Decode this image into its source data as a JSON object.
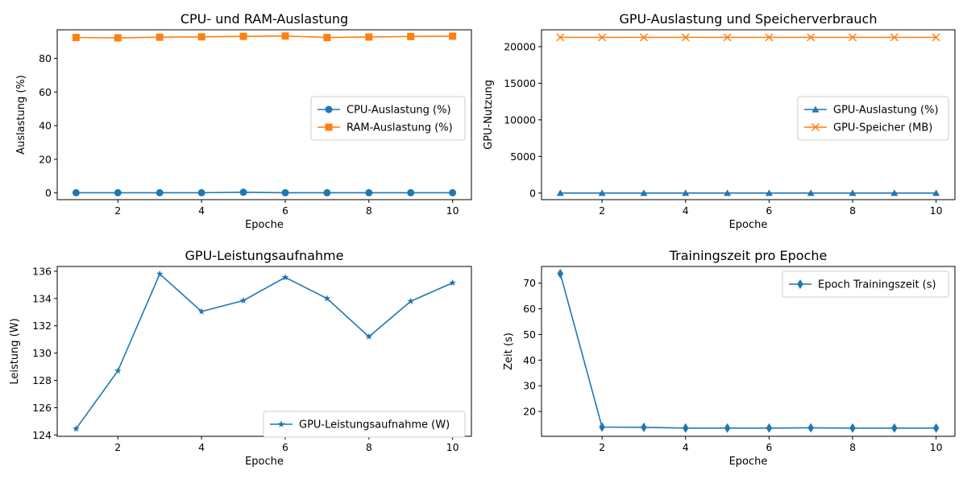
{
  "chart_data": [
    {
      "id": "cpu_ram",
      "type": "line",
      "title": "CPU- und RAM-Auslastung",
      "xlabel": "Epoche",
      "ylabel": "Auslastung (%)",
      "x": [
        1,
        2,
        3,
        4,
        5,
        6,
        7,
        8,
        9,
        10
      ],
      "xticks": [
        2,
        4,
        6,
        8,
        10
      ],
      "yticks": [
        0,
        20,
        40,
        60,
        80
      ],
      "xlim": [
        0.55,
        10.45
      ],
      "ylim": [
        -4.0,
        97.0
      ],
      "legend": "center-right",
      "series": [
        {
          "name": "CPU-Auslastung (%)",
          "color": "#1f77b4",
          "marker": "circle",
          "values": [
            0.1,
            0.1,
            0.1,
            0.1,
            0.4,
            0.1,
            0.1,
            0.1,
            0.1,
            0.1
          ]
        },
        {
          "name": "RAM-Auslastung (%)",
          "color": "#ff7f0e",
          "marker": "square",
          "values": [
            92.4,
            92.2,
            92.6,
            92.8,
            93.1,
            93.3,
            92.4,
            92.7,
            93.0,
            93.2
          ]
        }
      ]
    },
    {
      "id": "gpu",
      "type": "line",
      "title": "GPU-Auslastung und Speicherverbrauch",
      "xlabel": "Epoche",
      "ylabel": "GPU-Nutzung",
      "x": [
        1,
        2,
        3,
        4,
        5,
        6,
        7,
        8,
        9,
        10
      ],
      "xticks": [
        2,
        4,
        6,
        8,
        10
      ],
      "yticks": [
        0,
        5000,
        10000,
        15000,
        20000
      ],
      "xlim": [
        0.55,
        10.45
      ],
      "ylim": [
        -900,
        22300
      ],
      "legend": "center-right",
      "series": [
        {
          "name": "GPU-Auslastung (%)",
          "color": "#1f77b4",
          "marker": "triangle",
          "values": [
            0,
            0,
            0,
            0,
            0,
            0,
            0,
            0,
            0,
            0
          ]
        },
        {
          "name": "GPU-Speicher (MB)",
          "color": "#ff7f0e",
          "marker": "x",
          "values": [
            21270,
            21270,
            21270,
            21270,
            21270,
            21270,
            21270,
            21270,
            21270,
            21270
          ]
        }
      ]
    },
    {
      "id": "power",
      "type": "line",
      "title": "GPU-Leistungsaufnahme",
      "xlabel": "Epoche",
      "ylabel": "Leistung (W)",
      "x": [
        1,
        2,
        3,
        4,
        5,
        6,
        7,
        8,
        9,
        10
      ],
      "xticks": [
        2,
        4,
        6,
        8,
        10
      ],
      "yticks": [
        124,
        126,
        128,
        130,
        132,
        134,
        136
      ],
      "xlim": [
        0.55,
        10.45
      ],
      "ylim": [
        123.9,
        136.35
      ],
      "legend": "lower-right",
      "series": [
        {
          "name": "GPU-Leistungsaufnahme (W)",
          "color": "#1f77b4",
          "marker": "star",
          "values": [
            124.45,
            128.7,
            135.8,
            133.05,
            133.85,
            135.55,
            134.0,
            131.2,
            133.8,
            135.15
          ]
        }
      ]
    },
    {
      "id": "time",
      "type": "line",
      "title": "Trainingszeit pro Epoche",
      "xlabel": "Epoche",
      "ylabel": "Zeit (s)",
      "x": [
        1,
        2,
        3,
        4,
        5,
        6,
        7,
        8,
        9,
        10
      ],
      "xticks": [
        2,
        4,
        6,
        8,
        10
      ],
      "yticks": [
        20,
        30,
        40,
        50,
        60,
        70
      ],
      "xlim": [
        0.55,
        10.45
      ],
      "ylim": [
        10.3,
        76.5
      ],
      "legend": "upper-right",
      "series": [
        {
          "name": "Epoch Trainingszeit (s)",
          "color": "#1f77b4",
          "marker": "diamond",
          "values": [
            73.7,
            13.9,
            13.8,
            13.5,
            13.5,
            13.5,
            13.6,
            13.5,
            13.5,
            13.5
          ]
        }
      ]
    }
  ]
}
